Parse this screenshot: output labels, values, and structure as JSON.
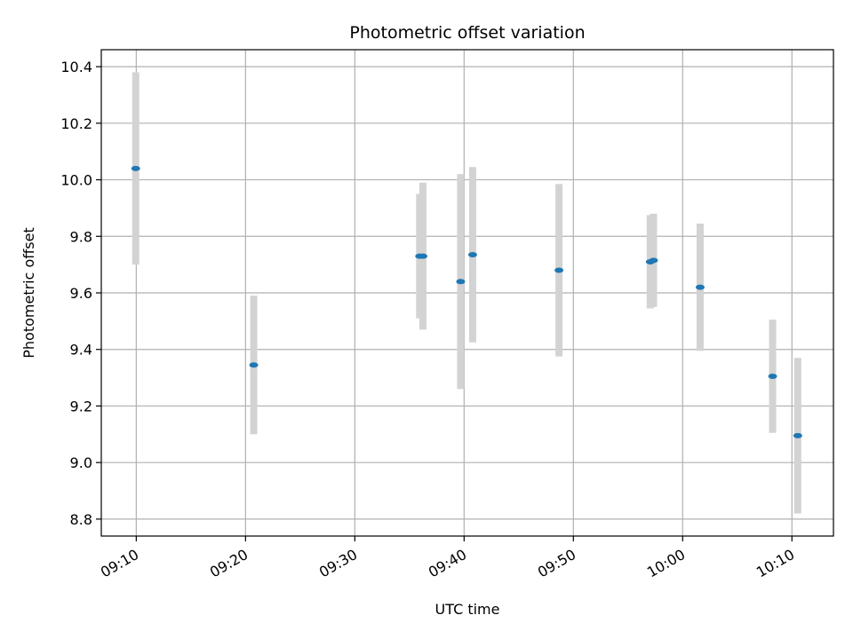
{
  "chart_data": {
    "type": "scatter",
    "title": "Photometric offset variation",
    "xlabel": "UTC time",
    "ylabel": "Photometric offset",
    "x_unit": "HH:MM",
    "xlim": [
      "09:06:48",
      "10:13:48"
    ],
    "ylim": [
      8.74,
      10.46
    ],
    "grid": true,
    "x_ticks": [
      "09:10",
      "09:20",
      "09:30",
      "09:40",
      "09:50",
      "10:00",
      "10:10"
    ],
    "y_ticks": [
      8.8,
      9.0,
      9.2,
      9.4,
      9.6,
      9.8,
      10.0,
      10.2,
      10.4
    ],
    "y_tick_labels": [
      "8.8",
      "9.0",
      "9.2",
      "9.4",
      "9.6",
      "9.8",
      "10.0",
      "10.2",
      "10.4"
    ],
    "marker_color": "#1f77b4",
    "errorbar_color": "#d3d3d3",
    "points": [
      {
        "x": "09:09:57",
        "y": 10.04,
        "err": 0.34
      },
      {
        "x": "09:20:45",
        "y": 9.345,
        "err": 0.245
      },
      {
        "x": "09:35:56",
        "y": 9.73,
        "err": 0.22
      },
      {
        "x": "09:36:14",
        "y": 9.73,
        "err": 0.26
      },
      {
        "x": "09:39:41",
        "y": 9.64,
        "err": 0.38
      },
      {
        "x": "09:40:47",
        "y": 9.735,
        "err": 0.31
      },
      {
        "x": "09:48:41",
        "y": 9.68,
        "err": 0.305
      },
      {
        "x": "09:57:02",
        "y": 9.71,
        "err": 0.165
      },
      {
        "x": "09:57:20",
        "y": 9.715,
        "err": 0.165
      },
      {
        "x": "10:01:36",
        "y": 9.62,
        "err": 0.225
      },
      {
        "x": "10:08:14",
        "y": 9.305,
        "err": 0.2
      },
      {
        "x": "10:10:32",
        "y": 9.095,
        "err": 0.275
      }
    ]
  }
}
